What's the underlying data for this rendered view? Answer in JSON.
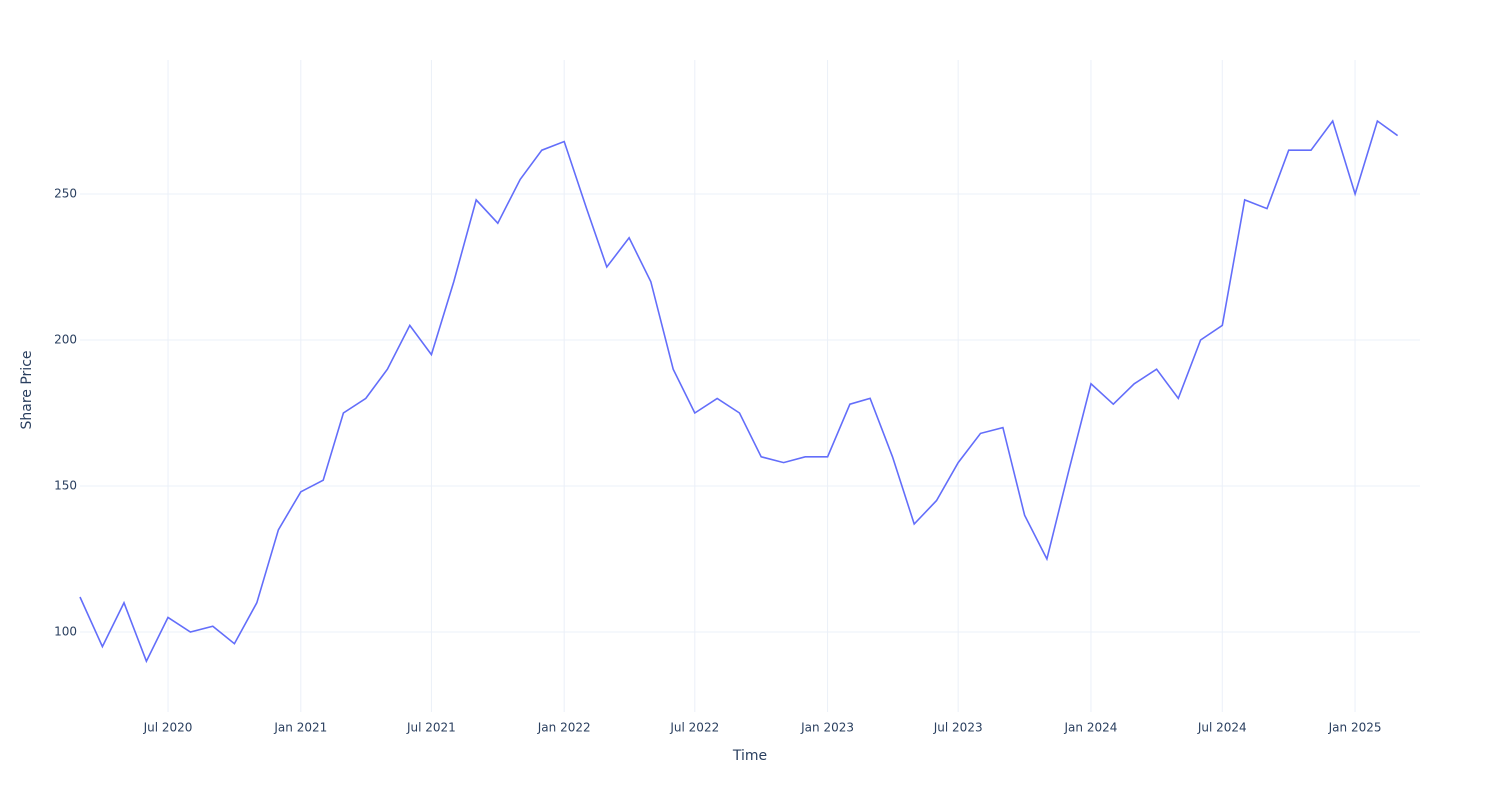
{
  "chart_data": {
    "type": "line",
    "x_label": "Time",
    "y_label": "Share Price",
    "x": [
      "2020-03",
      "2020-04",
      "2020-05",
      "2020-06",
      "2020-07",
      "2020-08",
      "2020-09",
      "2020-10",
      "2020-11",
      "2020-12",
      "2021-01",
      "2021-02",
      "2021-03",
      "2021-04",
      "2021-05",
      "2021-06",
      "2021-07",
      "2021-08",
      "2021-09",
      "2021-10",
      "2021-11",
      "2021-12",
      "2022-01",
      "2022-02",
      "2022-03",
      "2022-04",
      "2022-05",
      "2022-06",
      "2022-07",
      "2022-08",
      "2022-09",
      "2022-10",
      "2022-11",
      "2022-12",
      "2023-01",
      "2023-02",
      "2023-03",
      "2023-04",
      "2023-05",
      "2023-06",
      "2023-07",
      "2023-08",
      "2023-09",
      "2023-10",
      "2023-11",
      "2023-12",
      "2024-01",
      "2024-02",
      "2024-03",
      "2024-04",
      "2024-05",
      "2024-06",
      "2024-07",
      "2024-08",
      "2024-09",
      "2024-10",
      "2024-11",
      "2024-12",
      "2025-01",
      "2025-02",
      "2025-03"
    ],
    "series": [
      {
        "name": "Share Price",
        "color": "#636efa",
        "values": [
          112,
          95,
          110,
          90,
          105,
          100,
          102,
          96,
          110,
          135,
          148,
          152,
          175,
          180,
          190,
          205,
          195,
          220,
          248,
          240,
          255,
          265,
          268,
          245,
          225,
          235,
          220,
          190,
          175,
          180,
          175,
          160,
          158,
          160,
          160,
          178,
          180,
          160,
          137,
          145,
          158,
          168,
          170,
          140,
          125,
          155,
          185,
          178,
          185,
          190,
          180,
          200,
          205,
          248,
          245,
          265,
          265,
          275,
          250,
          275,
          270
        ]
      }
    ],
    "xlim": [
      "2020-03",
      "2025-04"
    ],
    "xticks": [
      {
        "value": "2020-07",
        "label": "Jul 2020"
      },
      {
        "value": "2021-01",
        "label": "Jan 2021"
      },
      {
        "value": "2021-07",
        "label": "Jul 2021"
      },
      {
        "value": "2022-01",
        "label": "Jan 2022"
      },
      {
        "value": "2022-07",
        "label": "Jul 2022"
      },
      {
        "value": "2023-01",
        "label": "Jan 2023"
      },
      {
        "value": "2023-07",
        "label": "Jul 2023"
      },
      {
        "value": "2024-01",
        "label": "Jan 2024"
      },
      {
        "value": "2024-07",
        "label": "Jul 2024"
      },
      {
        "value": "2025-01",
        "label": "Jan 2025"
      }
    ],
    "ylim": [
      72.6,
      295.9
    ],
    "yticks": [
      100,
      150,
      200,
      250
    ],
    "grid": true
  }
}
